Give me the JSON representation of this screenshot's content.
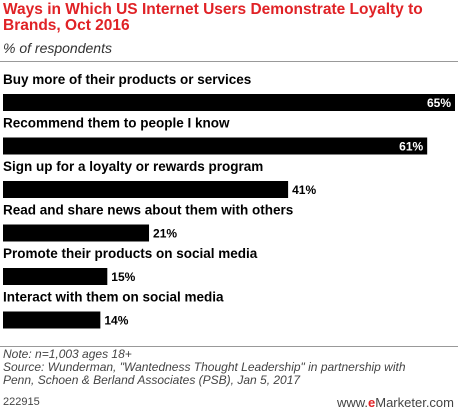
{
  "header": {
    "title": "Ways in Which US Internet Users Demonstrate Loyalty to Brands, Oct 2016",
    "subtitle": "% of respondents"
  },
  "chart_data": {
    "type": "bar",
    "orientation": "horizontal",
    "categories": [
      "Buy more of their products or services",
      "Recommend them to people I know",
      "Sign up for a loyalty or rewards program",
      "Read and share news about them with others",
      "Promote their products on social media",
      "Interact with them on social media"
    ],
    "values": [
      65,
      61,
      41,
      21,
      15,
      14
    ],
    "value_labels": [
      "65%",
      "61%",
      "41%",
      "21%",
      "15%",
      "14%"
    ],
    "xlim": [
      0,
      65
    ],
    "grid": false,
    "bar_color": "#000000"
  },
  "footer": {
    "note_lines": [
      "Note: n=1,003 ages 18+",
      "Source: Wunderman, \"Wantedness Thought Leadership\" in partnership with",
      "Penn, Schoen & Berland Associates (PSB), Jan 5, 2017"
    ],
    "chart_id": "222915",
    "brand_prefix": "www.",
    "brand_e": "e",
    "brand_name": "Marketer.com"
  },
  "colors": {
    "title": "#e02226",
    "bar": "#000000",
    "label_inside": "#ffffff",
    "label_outside": "#000000"
  }
}
